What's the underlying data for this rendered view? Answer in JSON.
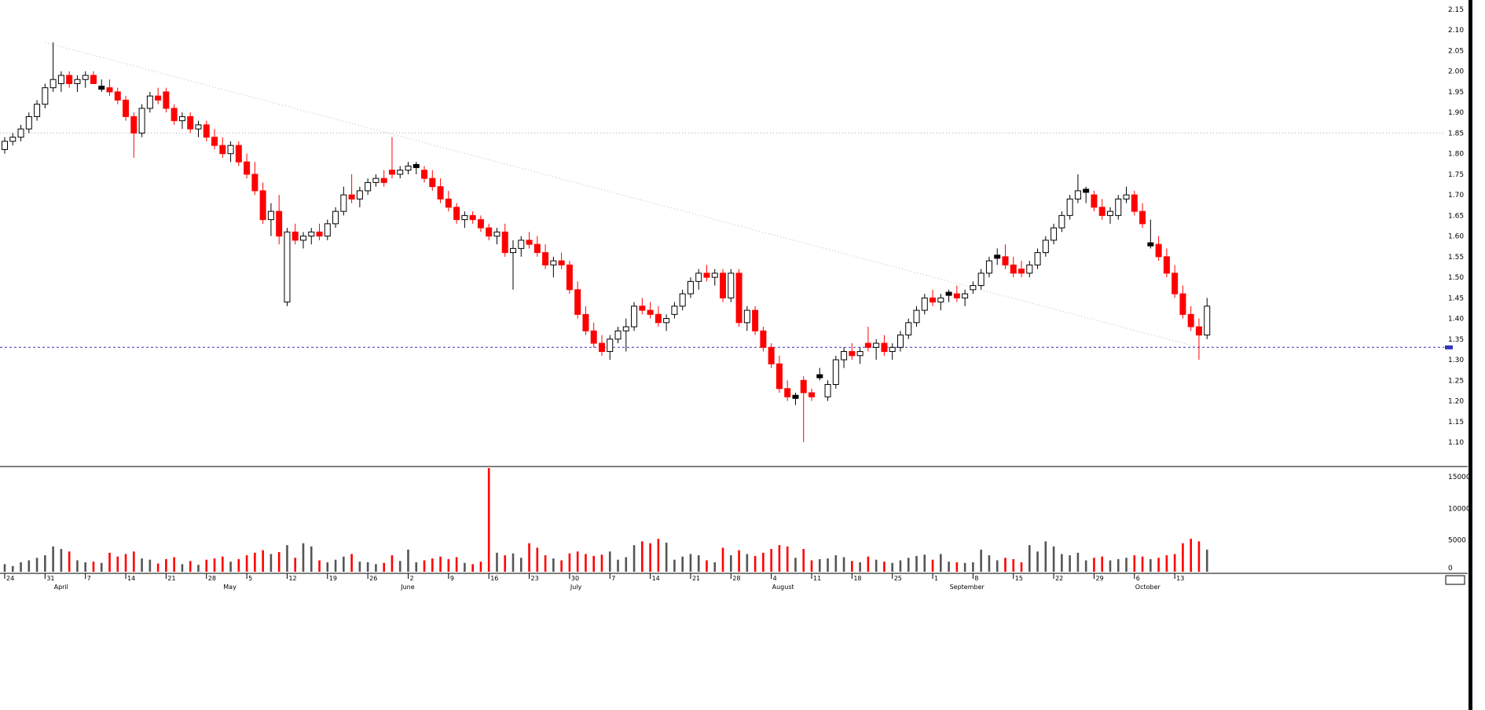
{
  "chart_data": {
    "type": "candlestick",
    "title": "",
    "description": "Daily candlestick price chart with volume pane, declining from ~2.00 in April to ~1.10 in August, recovering to ~1.75 in late September, falling again in October",
    "price_axis": {
      "side": "right",
      "min": 1.1,
      "max": 2.15,
      "tick_step": 0.05,
      "tick_labels": [
        "2.15",
        "2.10",
        "2.05",
        "2.00",
        "1.95",
        "1.90",
        "1.85",
        "1.80",
        "1.75",
        "1.70",
        "1.65",
        "1.60",
        "1.55",
        "1.50",
        "1.45",
        "1.40",
        "1.35",
        "1.30",
        "1.25",
        "1.20",
        "1.15",
        "1.10"
      ]
    },
    "volume_axis": {
      "side": "right",
      "ticks": [
        {
          "label": "15000",
          "value": 15000
        },
        {
          "label": "10000",
          "value": 10000
        },
        {
          "label": "5000",
          "value": 5000
        },
        {
          "label": "0",
          "value": 0
        }
      ]
    },
    "x_axis": {
      "week_ticks": [
        {
          "index": 0,
          "label": "24"
        },
        {
          "index": 5,
          "label": "31"
        },
        {
          "index": 10,
          "label": "7"
        },
        {
          "index": 15,
          "label": "14"
        },
        {
          "index": 20,
          "label": "21"
        },
        {
          "index": 25,
          "label": "28"
        },
        {
          "index": 30,
          "label": "5"
        },
        {
          "index": 35,
          "label": "12"
        },
        {
          "index": 40,
          "label": "19"
        },
        {
          "index": 45,
          "label": "26"
        },
        {
          "index": 50,
          "label": "2"
        },
        {
          "index": 55,
          "label": "9"
        },
        {
          "index": 60,
          "label": "16"
        },
        {
          "index": 65,
          "label": "23"
        },
        {
          "index": 70,
          "label": "30"
        },
        {
          "index": 75,
          "label": "7"
        },
        {
          "index": 80,
          "label": "14"
        },
        {
          "index": 85,
          "label": "21"
        },
        {
          "index": 90,
          "label": "28"
        },
        {
          "index": 95,
          "label": "4"
        },
        {
          "index": 100,
          "label": "11"
        },
        {
          "index": 105,
          "label": "18"
        },
        {
          "index": 110,
          "label": "25"
        },
        {
          "index": 115,
          "label": "1"
        },
        {
          "index": 120,
          "label": "8"
        },
        {
          "index": 125,
          "label": "15"
        },
        {
          "index": 130,
          "label": "22"
        },
        {
          "index": 135,
          "label": "29"
        },
        {
          "index": 140,
          "label": "6"
        },
        {
          "index": 145,
          "label": "13"
        }
      ],
      "months": [
        {
          "index": 6,
          "label": "April"
        },
        {
          "index": 27,
          "label": "May"
        },
        {
          "index": 49,
          "label": "June"
        },
        {
          "index": 70,
          "label": "July"
        },
        {
          "index": 95,
          "label": "August"
        },
        {
          "index": 117,
          "label": "September"
        },
        {
          "index": 140,
          "label": "October"
        }
      ]
    },
    "reference_lines": [
      {
        "name": "resistance-dotted-line",
        "price": 1.85,
        "style": "dotted",
        "color": "#a8a8a8"
      },
      {
        "name": "support-dashed-line",
        "price": 1.33,
        "style": "dashed",
        "color": "#3333bb"
      }
    ],
    "trendline": {
      "name": "downtrend-line",
      "from_index": 5,
      "from_price": 2.07,
      "to_index": 148,
      "to_price": 1.33,
      "style": "dotted",
      "color": "#bbbbbb"
    },
    "colors": {
      "up_fill": "#ffffff",
      "up_stroke": "#000000",
      "down_fill": "#ff0000",
      "down_stroke": "#ff0000",
      "doji_fill": "#000000",
      "volume_up": "#555555",
      "volume_down": "#ff0000",
      "axis_text": "#000000",
      "background": "#ffffff"
    },
    "candles_format": [
      "open",
      "high",
      "low",
      "close",
      "volume"
    ],
    "candles": [
      [
        1.81,
        1.84,
        1.8,
        1.83,
        1200
      ],
      [
        1.83,
        1.85,
        1.82,
        1.84,
        900
      ],
      [
        1.84,
        1.87,
        1.83,
        1.86,
        1500
      ],
      [
        1.86,
        1.9,
        1.85,
        1.89,
        1800
      ],
      [
        1.89,
        1.93,
        1.88,
        1.92,
        2200
      ],
      [
        1.92,
        1.97,
        1.91,
        1.96,
        2600
      ],
      [
        1.96,
        2.07,
        1.95,
        1.98,
        4000
      ],
      [
        1.97,
        2.0,
        1.95,
        1.99,
        3600
      ],
      [
        1.99,
        2.0,
        1.96,
        1.97,
        3200
      ],
      [
        1.97,
        1.99,
        1.95,
        1.98,
        1800
      ],
      [
        1.98,
        2.0,
        1.96,
        1.99,
        1500
      ],
      [
        1.99,
        2.0,
        1.97,
        1.97,
        1600
      ],
      [
        1.96,
        1.98,
        1.95,
        1.96,
        1400
      ],
      [
        1.96,
        1.98,
        1.94,
        1.95,
        3000
      ],
      [
        1.95,
        1.96,
        1.92,
        1.93,
        2400
      ],
      [
        1.93,
        1.94,
        1.88,
        1.89,
        2800
      ],
      [
        1.89,
        1.9,
        1.79,
        1.85,
        3200
      ],
      [
        1.85,
        1.92,
        1.84,
        1.91,
        2100
      ],
      [
        1.91,
        1.95,
        1.9,
        1.94,
        1900
      ],
      [
        1.94,
        1.96,
        1.92,
        1.93,
        1300
      ],
      [
        1.95,
        1.96,
        1.9,
        1.91,
        2000
      ],
      [
        1.91,
        1.92,
        1.87,
        1.88,
        2300
      ],
      [
        1.88,
        1.9,
        1.86,
        1.89,
        1200
      ],
      [
        1.89,
        1.9,
        1.85,
        1.86,
        1700
      ],
      [
        1.86,
        1.88,
        1.84,
        1.87,
        1100
      ],
      [
        1.87,
        1.88,
        1.83,
        1.84,
        1900
      ],
      [
        1.84,
        1.86,
        1.81,
        1.82,
        2100
      ],
      [
        1.82,
        1.84,
        1.79,
        1.8,
        2400
      ],
      [
        1.8,
        1.83,
        1.78,
        1.82,
        1600
      ],
      [
        1.82,
        1.83,
        1.77,
        1.78,
        2000
      ],
      [
        1.78,
        1.8,
        1.74,
        1.75,
        2600
      ],
      [
        1.75,
        1.78,
        1.7,
        1.71,
        3000
      ],
      [
        1.71,
        1.73,
        1.63,
        1.64,
        3400
      ],
      [
        1.64,
        1.68,
        1.6,
        1.66,
        2800
      ],
      [
        1.66,
        1.7,
        1.58,
        1.6,
        3100
      ],
      [
        1.44,
        1.62,
        1.43,
        1.61,
        4200
      ],
      [
        1.61,
        1.63,
        1.58,
        1.59,
        2200
      ],
      [
        1.59,
        1.61,
        1.57,
        1.6,
        4500
      ],
      [
        1.6,
        1.62,
        1.58,
        1.61,
        4000
      ],
      [
        1.61,
        1.63,
        1.59,
        1.6,
        1800
      ],
      [
        1.6,
        1.64,
        1.59,
        1.63,
        1500
      ],
      [
        1.63,
        1.67,
        1.62,
        1.66,
        1900
      ],
      [
        1.66,
        1.72,
        1.65,
        1.7,
        2400
      ],
      [
        1.7,
        1.75,
        1.68,
        1.69,
        2800
      ],
      [
        1.69,
        1.72,
        1.67,
        1.71,
        1600
      ],
      [
        1.71,
        1.74,
        1.7,
        1.73,
        1500
      ],
      [
        1.73,
        1.75,
        1.72,
        1.74,
        1200
      ],
      [
        1.74,
        1.76,
        1.72,
        1.73,
        1400
      ],
      [
        1.76,
        1.84,
        1.74,
        1.75,
        2600
      ],
      [
        1.75,
        1.77,
        1.74,
        1.76,
        1700
      ],
      [
        1.76,
        1.78,
        1.75,
        1.77,
        3500
      ],
      [
        1.77,
        1.78,
        1.75,
        1.77,
        1500
      ],
      [
        1.76,
        1.77,
        1.73,
        1.74,
        1800
      ],
      [
        1.74,
        1.76,
        1.71,
        1.72,
        2100
      ],
      [
        1.72,
        1.74,
        1.68,
        1.69,
        2400
      ],
      [
        1.69,
        1.71,
        1.66,
        1.67,
        2000
      ],
      [
        1.67,
        1.68,
        1.63,
        1.64,
        2300
      ],
      [
        1.64,
        1.66,
        1.62,
        1.65,
        1400
      ],
      [
        1.65,
        1.66,
        1.63,
        1.64,
        1200
      ],
      [
        1.64,
        1.65,
        1.61,
        1.62,
        1600
      ],
      [
        1.62,
        1.63,
        1.59,
        1.6,
        17000
      ],
      [
        1.6,
        1.62,
        1.58,
        1.61,
        3000
      ],
      [
        1.61,
        1.63,
        1.55,
        1.56,
        2600
      ],
      [
        1.56,
        1.59,
        1.47,
        1.57,
        2900
      ],
      [
        1.57,
        1.6,
        1.55,
        1.59,
        2200
      ],
      [
        1.59,
        1.61,
        1.57,
        1.58,
        4500
      ],
      [
        1.58,
        1.6,
        1.55,
        1.56,
        3800
      ],
      [
        1.56,
        1.58,
        1.52,
        1.53,
        2600
      ],
      [
        1.53,
        1.55,
        1.5,
        1.54,
        2100
      ],
      [
        1.54,
        1.56,
        1.52,
        1.53,
        1800
      ],
      [
        1.53,
        1.54,
        1.46,
        1.47,
        2900
      ],
      [
        1.47,
        1.49,
        1.4,
        1.41,
        3200
      ],
      [
        1.41,
        1.43,
        1.36,
        1.37,
        2800
      ],
      [
        1.37,
        1.39,
        1.33,
        1.34,
        2500
      ],
      [
        1.34,
        1.36,
        1.31,
        1.32,
        2700
      ],
      [
        1.32,
        1.36,
        1.3,
        1.35,
        3200
      ],
      [
        1.35,
        1.38,
        1.34,
        1.37,
        1900
      ],
      [
        1.37,
        1.4,
        1.32,
        1.38,
        2300
      ],
      [
        1.38,
        1.44,
        1.37,
        1.43,
        4200
      ],
      [
        1.43,
        1.45,
        1.41,
        1.42,
        4800
      ],
      [
        1.42,
        1.44,
        1.4,
        1.41,
        4500
      ],
      [
        1.41,
        1.43,
        1.38,
        1.39,
        5200
      ],
      [
        1.39,
        1.41,
        1.37,
        1.4,
        4600
      ],
      [
        1.41,
        1.44,
        1.4,
        1.43,
        1900
      ],
      [
        1.43,
        1.47,
        1.42,
        1.46,
        2400
      ],
      [
        1.46,
        1.5,
        1.45,
        1.49,
        2800
      ],
      [
        1.49,
        1.52,
        1.47,
        1.51,
        2600
      ],
      [
        1.51,
        1.53,
        1.49,
        1.5,
        1800
      ],
      [
        1.5,
        1.52,
        1.48,
        1.51,
        1500
      ],
      [
        1.51,
        1.52,
        1.44,
        1.45,
        3800
      ],
      [
        1.45,
        1.52,
        1.44,
        1.51,
        2600
      ],
      [
        1.51,
        1.52,
        1.38,
        1.39,
        3400
      ],
      [
        1.39,
        1.43,
        1.37,
        1.42,
        2800
      ],
      [
        1.42,
        1.43,
        1.36,
        1.37,
        2500
      ],
      [
        1.37,
        1.38,
        1.32,
        1.33,
        3000
      ],
      [
        1.33,
        1.34,
        1.28,
        1.29,
        3600
      ],
      [
        1.29,
        1.31,
        1.22,
        1.23,
        4200
      ],
      [
        1.23,
        1.25,
        1.2,
        1.21,
        4000
      ],
      [
        1.21,
        1.22,
        1.19,
        1.21,
        2200
      ],
      [
        1.25,
        1.26,
        1.1,
        1.22,
        3600
      ],
      [
        1.22,
        1.23,
        1.2,
        1.21,
        1800
      ],
      [
        1.26,
        1.28,
        1.25,
        1.26,
        2000
      ],
      [
        1.21,
        1.25,
        1.2,
        1.24,
        2100
      ],
      [
        1.24,
        1.31,
        1.23,
        1.3,
        2600
      ],
      [
        1.3,
        1.33,
        1.28,
        1.32,
        2300
      ],
      [
        1.32,
        1.34,
        1.3,
        1.31,
        1700
      ],
      [
        1.31,
        1.33,
        1.29,
        1.32,
        1500
      ],
      [
        1.34,
        1.38,
        1.32,
        1.33,
        2400
      ],
      [
        1.33,
        1.35,
        1.3,
        1.34,
        1900
      ],
      [
        1.34,
        1.36,
        1.31,
        1.32,
        1600
      ],
      [
        1.32,
        1.34,
        1.3,
        1.33,
        1400
      ],
      [
        1.33,
        1.37,
        1.32,
        1.36,
        1800
      ],
      [
        1.36,
        1.4,
        1.35,
        1.39,
        2200
      ],
      [
        1.39,
        1.43,
        1.38,
        1.42,
        2500
      ],
      [
        1.42,
        1.46,
        1.41,
        1.45,
        2700
      ],
      [
        1.45,
        1.47,
        1.43,
        1.44,
        1900
      ],
      [
        1.44,
        1.46,
        1.42,
        1.45,
        2800
      ],
      [
        1.46,
        1.47,
        1.44,
        1.46,
        1600
      ],
      [
        1.46,
        1.48,
        1.44,
        1.45,
        1500
      ],
      [
        1.45,
        1.47,
        1.43,
        1.46,
        1400
      ],
      [
        1.47,
        1.49,
        1.46,
        1.48,
        1500
      ],
      [
        1.48,
        1.52,
        1.47,
        1.51,
        3500
      ],
      [
        1.51,
        1.55,
        1.5,
        1.54,
        2600
      ],
      [
        1.55,
        1.57,
        1.53,
        1.55,
        1800
      ],
      [
        1.55,
        1.58,
        1.52,
        1.53,
        2200
      ],
      [
        1.53,
        1.55,
        1.5,
        1.51,
        2000
      ],
      [
        1.52,
        1.54,
        1.5,
        1.51,
        1500
      ],
      [
        1.51,
        1.54,
        1.5,
        1.53,
        4200
      ],
      [
        1.53,
        1.57,
        1.52,
        1.56,
        3200
      ],
      [
        1.56,
        1.6,
        1.55,
        1.59,
        4800
      ],
      [
        1.59,
        1.63,
        1.58,
        1.62,
        4000
      ],
      [
        1.62,
        1.66,
        1.61,
        1.65,
        2800
      ],
      [
        1.65,
        1.7,
        1.64,
        1.69,
        2600
      ],
      [
        1.69,
        1.75,
        1.68,
        1.71,
        3000
      ],
      [
        1.71,
        1.72,
        1.68,
        1.71,
        1800
      ],
      [
        1.7,
        1.71,
        1.66,
        1.67,
        2200
      ],
      [
        1.67,
        1.69,
        1.64,
        1.65,
        2400
      ],
      [
        1.65,
        1.67,
        1.63,
        1.66,
        1800
      ],
      [
        1.65,
        1.7,
        1.64,
        1.69,
        2000
      ],
      [
        1.69,
        1.72,
        1.68,
        1.7,
        2200
      ],
      [
        1.7,
        1.71,
        1.65,
        1.66,
        2600
      ],
      [
        1.66,
        1.68,
        1.62,
        1.63,
        2400
      ],
      [
        1.58,
        1.64,
        1.57,
        1.58,
        2000
      ],
      [
        1.58,
        1.6,
        1.54,
        1.55,
        2200
      ],
      [
        1.55,
        1.57,
        1.5,
        1.51,
        2600
      ],
      [
        1.51,
        1.53,
        1.45,
        1.46,
        2800
      ],
      [
        1.46,
        1.48,
        1.4,
        1.41,
        4500
      ],
      [
        1.41,
        1.43,
        1.37,
        1.38,
        5200
      ],
      [
        1.38,
        1.4,
        1.3,
        1.36,
        4800
      ],
      [
        1.36,
        1.45,
        1.35,
        1.43,
        3500
      ]
    ]
  }
}
